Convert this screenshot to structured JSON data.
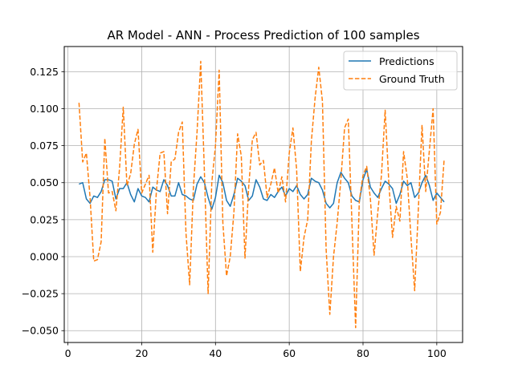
{
  "chart_data": {
    "type": "line",
    "title": "AR Model - ANN - Process Prediction of 100 samples",
    "xlabel": "",
    "ylabel": "",
    "xlim": [
      -1,
      107
    ],
    "ylim": [
      -0.058,
      0.142
    ],
    "grid": true,
    "legend_position": "top-right",
    "x_ticks": [
      0,
      20,
      40,
      60,
      80,
      100
    ],
    "x_tick_labels": [
      "0",
      "20",
      "40",
      "60",
      "80",
      "100"
    ],
    "y_ticks": [
      -0.05,
      -0.025,
      0.0,
      0.025,
      0.05,
      0.075,
      0.1,
      0.125
    ],
    "y_tick_labels": [
      "−0.050",
      "−0.025",
      "0.000",
      "0.025",
      "0.050",
      "0.075",
      "0.100",
      "0.125"
    ],
    "x": [
      3,
      4,
      5,
      6,
      7,
      8,
      9,
      10,
      11,
      12,
      13,
      14,
      15,
      16,
      17,
      18,
      19,
      20,
      21,
      22,
      23,
      24,
      25,
      26,
      27,
      28,
      29,
      30,
      31,
      32,
      33,
      34,
      35,
      36,
      37,
      38,
      39,
      40,
      41,
      42,
      43,
      44,
      45,
      46,
      47,
      48,
      49,
      50,
      51,
      52,
      53,
      54,
      55,
      56,
      57,
      58,
      59,
      60,
      61,
      62,
      63,
      64,
      65,
      66,
      67,
      68,
      69,
      70,
      71,
      72,
      73,
      74,
      75,
      76,
      77,
      78,
      79,
      80,
      81,
      82,
      83,
      84,
      85,
      86,
      87,
      88,
      89,
      90,
      91,
      92,
      93,
      94,
      95,
      96,
      97,
      98,
      99,
      100,
      101,
      102
    ],
    "series": [
      {
        "name": "Predictions",
        "color": "#1f77b4",
        "style": "solid",
        "values": [
          0.049,
          0.05,
          0.039,
          0.036,
          0.041,
          0.04,
          0.044,
          0.052,
          0.052,
          0.051,
          0.039,
          0.046,
          0.046,
          0.05,
          0.042,
          0.037,
          0.046,
          0.041,
          0.04,
          0.037,
          0.047,
          0.045,
          0.044,
          0.052,
          0.048,
          0.041,
          0.041,
          0.05,
          0.042,
          0.041,
          0.039,
          0.038,
          0.049,
          0.054,
          0.05,
          0.04,
          0.032,
          0.04,
          0.055,
          0.05,
          0.038,
          0.034,
          0.042,
          0.053,
          0.051,
          0.048,
          0.038,
          0.041,
          0.052,
          0.047,
          0.039,
          0.038,
          0.042,
          0.04,
          0.044,
          0.047,
          0.041,
          0.046,
          0.044,
          0.048,
          0.042,
          0.039,
          0.042,
          0.053,
          0.051,
          0.05,
          0.045,
          0.036,
          0.033,
          0.036,
          0.05,
          0.057,
          0.053,
          0.05,
          0.041,
          0.038,
          0.037,
          0.052,
          0.059,
          0.047,
          0.043,
          0.04,
          0.046,
          0.051,
          0.049,
          0.046,
          0.036,
          0.042,
          0.051,
          0.048,
          0.05,
          0.04,
          0.043,
          0.05,
          0.055,
          0.048,
          0.038,
          0.043,
          0.04,
          0.037
        ]
      },
      {
        "name": "Ground Truth",
        "color": "#ff7f0e",
        "style": "dashed",
        "values": [
          0.104,
          0.064,
          0.07,
          0.04,
          -0.003,
          -0.002,
          0.01,
          0.08,
          0.043,
          0.044,
          0.031,
          0.06,
          0.101,
          0.048,
          0.056,
          0.076,
          0.086,
          0.043,
          0.049,
          0.055,
          0.003,
          0.045,
          0.07,
          0.071,
          0.029,
          0.064,
          0.066,
          0.084,
          0.091,
          0.016,
          -0.019,
          0.046,
          0.084,
          0.132,
          0.057,
          -0.025,
          0.05,
          0.075,
          0.126,
          0.023,
          -0.013,
          0.0,
          0.03,
          0.083,
          0.068,
          -0.001,
          0.047,
          0.079,
          0.084,
          0.062,
          0.065,
          0.04,
          0.049,
          0.06,
          0.043,
          0.054,
          0.037,
          0.07,
          0.087,
          0.059,
          -0.01,
          0.013,
          0.025,
          0.078,
          0.107,
          0.128,
          0.105,
          0.005,
          -0.039,
          0.0,
          0.023,
          0.052,
          0.087,
          0.093,
          0.023,
          -0.048,
          0.038,
          0.055,
          0.061,
          0.039,
          0.001,
          0.03,
          0.055,
          0.099,
          0.05,
          0.013,
          0.034,
          0.024,
          0.071,
          0.053,
          0.013,
          -0.023,
          0.032,
          0.089,
          0.044,
          0.072,
          0.1,
          0.022,
          0.03,
          0.066
        ]
      }
    ]
  }
}
